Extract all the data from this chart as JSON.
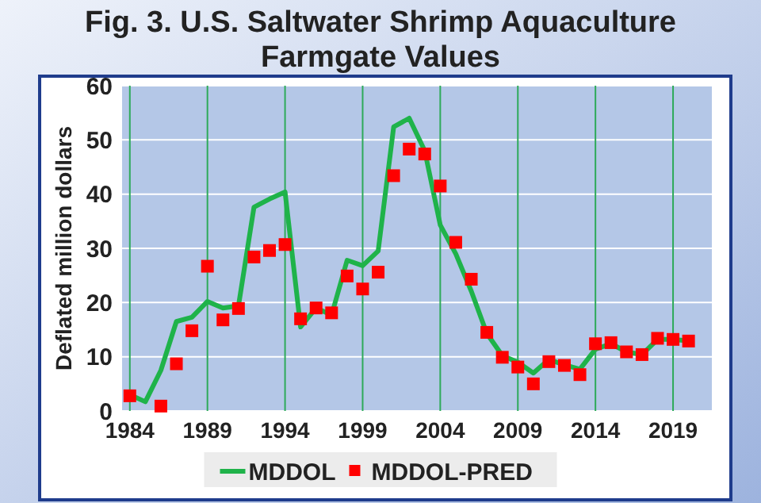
{
  "chart_data": {
    "type": "line",
    "title": "Fig. 3. U.S. Saltwater Shrimp Aquaculture Farmgate Values",
    "ylabel": "Deflated million dollars",
    "x": [
      1984,
      1985,
      1986,
      1987,
      1988,
      1989,
      1990,
      1991,
      1992,
      1993,
      1994,
      1995,
      1996,
      1997,
      1998,
      1999,
      2000,
      2001,
      2002,
      2003,
      2004,
      2005,
      2006,
      2007,
      2008,
      2009,
      2010,
      2011,
      2012,
      2013,
      2014,
      2015,
      2016,
      2017,
      2018,
      2019,
      2020
    ],
    "series": [
      {
        "name": "MDDOL",
        "color": "#1fb34a",
        "marker": "none",
        "values": [
          3.0,
          1.7,
          7.5,
          16.5,
          17.3,
          20.2,
          19,
          19.4,
          37.6,
          39.1,
          40.4,
          15.5,
          19,
          17.7,
          27.8,
          26.8,
          29.5,
          52.4,
          54,
          48,
          34.3,
          29,
          22.1,
          14.3,
          10.2,
          9,
          7,
          9.5,
          8.5,
          7.7,
          11.4,
          12.4,
          10.9,
          10.4,
          13.2,
          13.2,
          12.9
        ]
      },
      {
        "name": "MDDOL-PRED",
        "type": "scatter",
        "color": "#ff0000",
        "marker": "square",
        "values": [
          2.8,
          null,
          0.9,
          8.7,
          14.8,
          26.7,
          16.8,
          18.9,
          28.4,
          29.6,
          30.7,
          17,
          19,
          18.1,
          24.9,
          22.5,
          25.6,
          43.4,
          48.3,
          47.4,
          41.5,
          31.1,
          24.3,
          14.5,
          9.9,
          8.1,
          5,
          9.1,
          8.4,
          6.7,
          12.4,
          12.6,
          10.9,
          10.4,
          13.4,
          13.2,
          12.9
        ]
      }
    ],
    "xlim": [
      1983.5,
      2021.5
    ],
    "xticks": [
      1984,
      1989,
      1994,
      1999,
      2004,
      2009,
      2014,
      2019
    ],
    "ylim": [
      0,
      60
    ],
    "yticks": [
      0,
      10,
      20,
      30,
      40,
      50,
      60
    ],
    "grid": true,
    "legend": "bottom"
  }
}
